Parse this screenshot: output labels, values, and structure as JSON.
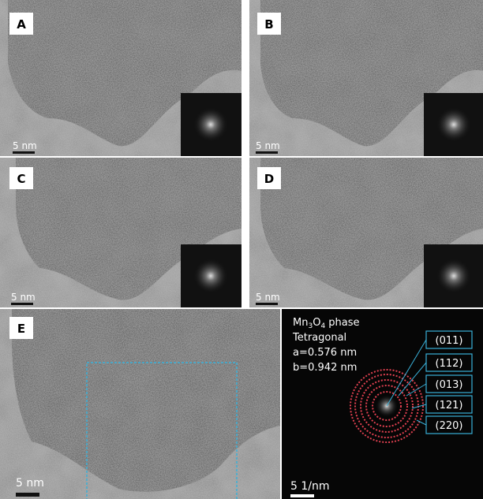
{
  "panels": [
    {
      "label": "A",
      "scale_bar": "5 nm"
    },
    {
      "label": "B",
      "scale_bar": "5 nm"
    },
    {
      "label": "C",
      "scale_bar": "5 nm"
    },
    {
      "label": "D",
      "scale_bar": "5 nm"
    },
    {
      "label": "E",
      "scale_bar": "5 nm"
    }
  ],
  "fft": {
    "scale_bar": "5 1/nm",
    "phase": {
      "parts": [
        "Mn",
        "3",
        "O",
        "4",
        " phase"
      ]
    },
    "system": "Tetragonal",
    "a": "a=0.576 nm",
    "b": "b=0.942 nm",
    "rings": [
      "(011)",
      "(112)",
      "(013)",
      "(121)",
      "(220)"
    ]
  }
}
